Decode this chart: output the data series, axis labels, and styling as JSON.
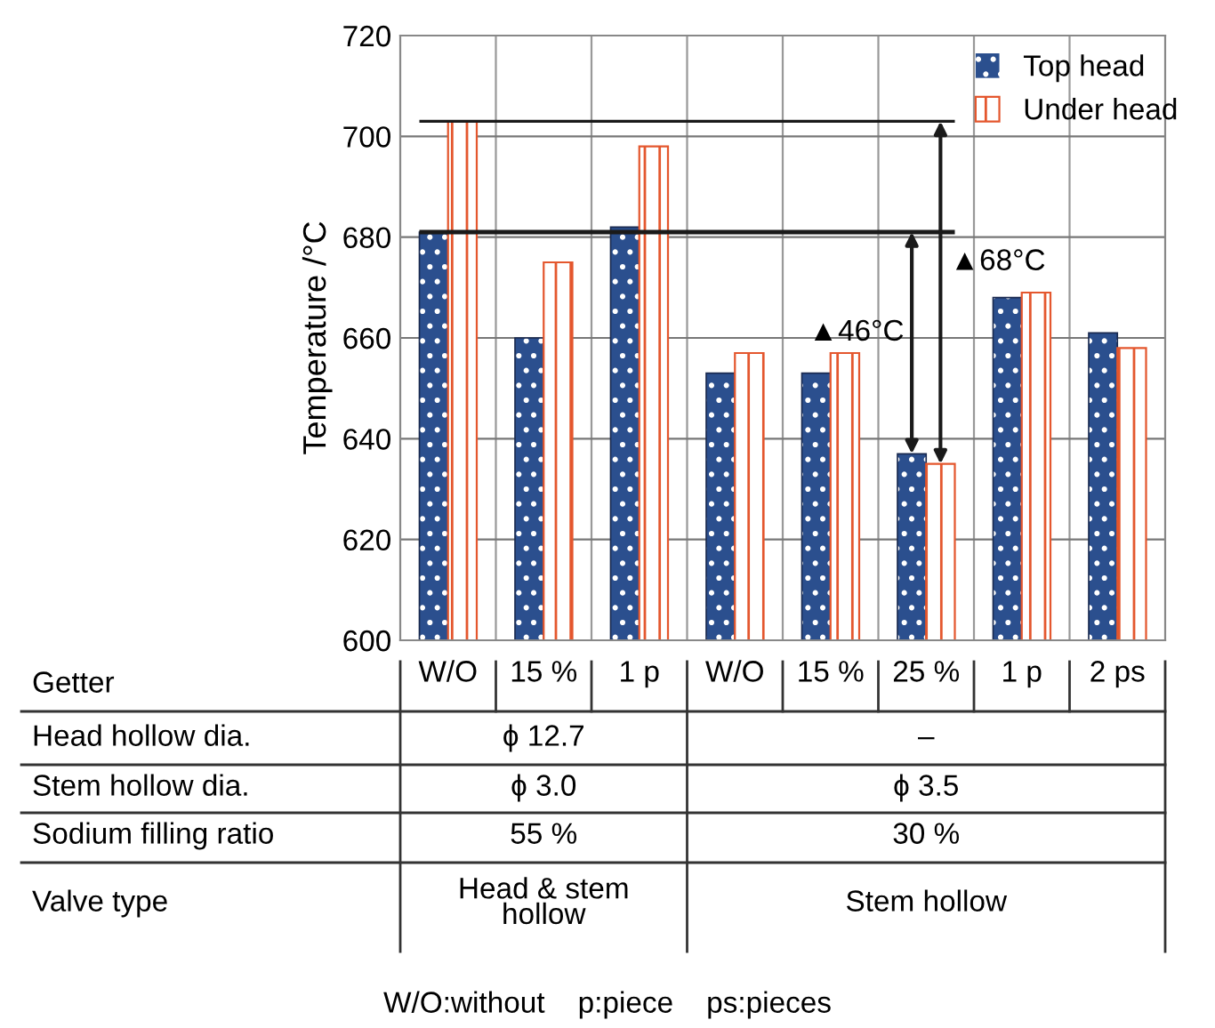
{
  "chart_data": {
    "type": "bar",
    "ylabel": "Temperature /°C",
    "categories": [
      "W/O",
      "15 %",
      "1 p",
      "W/O",
      "15 %",
      "25 %",
      "1 p",
      "2 ps"
    ],
    "series": [
      {
        "name": "Top head",
        "color": "#2b4f8e",
        "values": [
          681,
          660,
          682,
          653,
          653,
          637,
          668,
          661
        ]
      },
      {
        "name": "Under head",
        "color": "#e4572e",
        "values": [
          703,
          675,
          698,
          657,
          657,
          635,
          669,
          658
        ]
      }
    ],
    "ylim": [
      600,
      720
    ],
    "yticks": [
      600,
      620,
      640,
      660,
      680,
      700,
      720
    ],
    "grid": true,
    "legend": "top right",
    "ref_lines": [
      {
        "axis": "y",
        "value": 681,
        "label": null,
        "color": "#1a1a1a"
      },
      {
        "axis": "y",
        "value": 703,
        "label": null,
        "color": "#1a1a1a"
      }
    ],
    "annotations": [
      "▲46°C",
      "▲68°C",
      "Getter",
      "Head hollow dia.",
      "ϕ 12.7",
      "–",
      "Stem hollow dia.",
      "ϕ 3.0",
      "ϕ 3.5",
      "Sodium filling ratio",
      "55 %",
      "30 %",
      "Valve type",
      "Head & stem\nhollow",
      "Stem hollow",
      "W/O:without    p:piece    ps:pieces"
    ]
  }
}
